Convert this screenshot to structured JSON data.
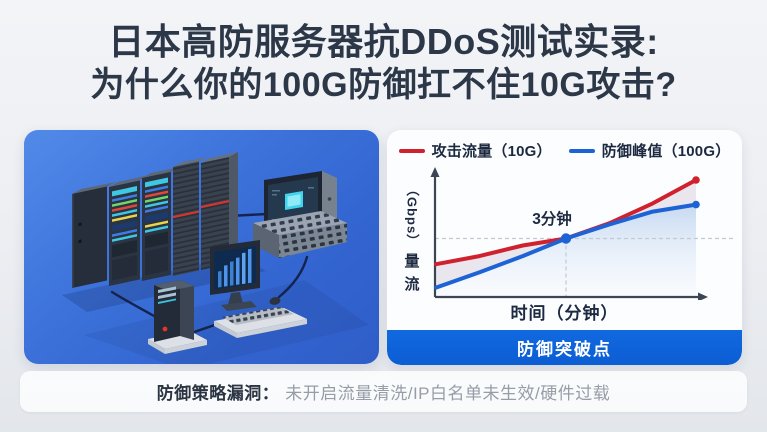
{
  "title": {
    "line1": "日本高防服务器抗DDoS测试实录:",
    "line2": "为什么你的100G防御扛不住10G攻击?",
    "color": "#2c3748"
  },
  "chart_data": {
    "type": "line",
    "x": [
      0,
      1,
      2,
      3,
      4,
      5,
      6
    ],
    "xlabel": "时间（分钟）",
    "ylabel": "流量（Gbps）",
    "ylabel_parts": {
      "unit": "（Gbps）",
      "char_top": "量",
      "char_bottom": "流"
    },
    "ylim": [
      0,
      11
    ],
    "grid": false,
    "legend_position": "top",
    "series": [
      {
        "name": "攻击流量（10G）",
        "color": "#d0212f",
        "values": [
          2.8,
          3.5,
          4.4,
          5.0,
          6.3,
          8.0,
          10.0
        ]
      },
      {
        "name": "防御峰值（100G）",
        "color": "#1e63d6",
        "values": [
          0.8,
          2.1,
          3.5,
          5.0,
          6.2,
          7.3,
          7.9
        ]
      }
    ],
    "annotation": {
      "label": "3分钟",
      "x_index": 3
    },
    "breach_banner": "防御突破点",
    "breach_banner_color": "#0e63da"
  },
  "illustration": {
    "description": "isometric server racks with console, desktop and tower PC",
    "panel_color": "#3a6fd9"
  },
  "footer": {
    "label": "防御策略漏洞：",
    "text": "未开启流量清洗/IP白名单未生效/硬件过载"
  }
}
